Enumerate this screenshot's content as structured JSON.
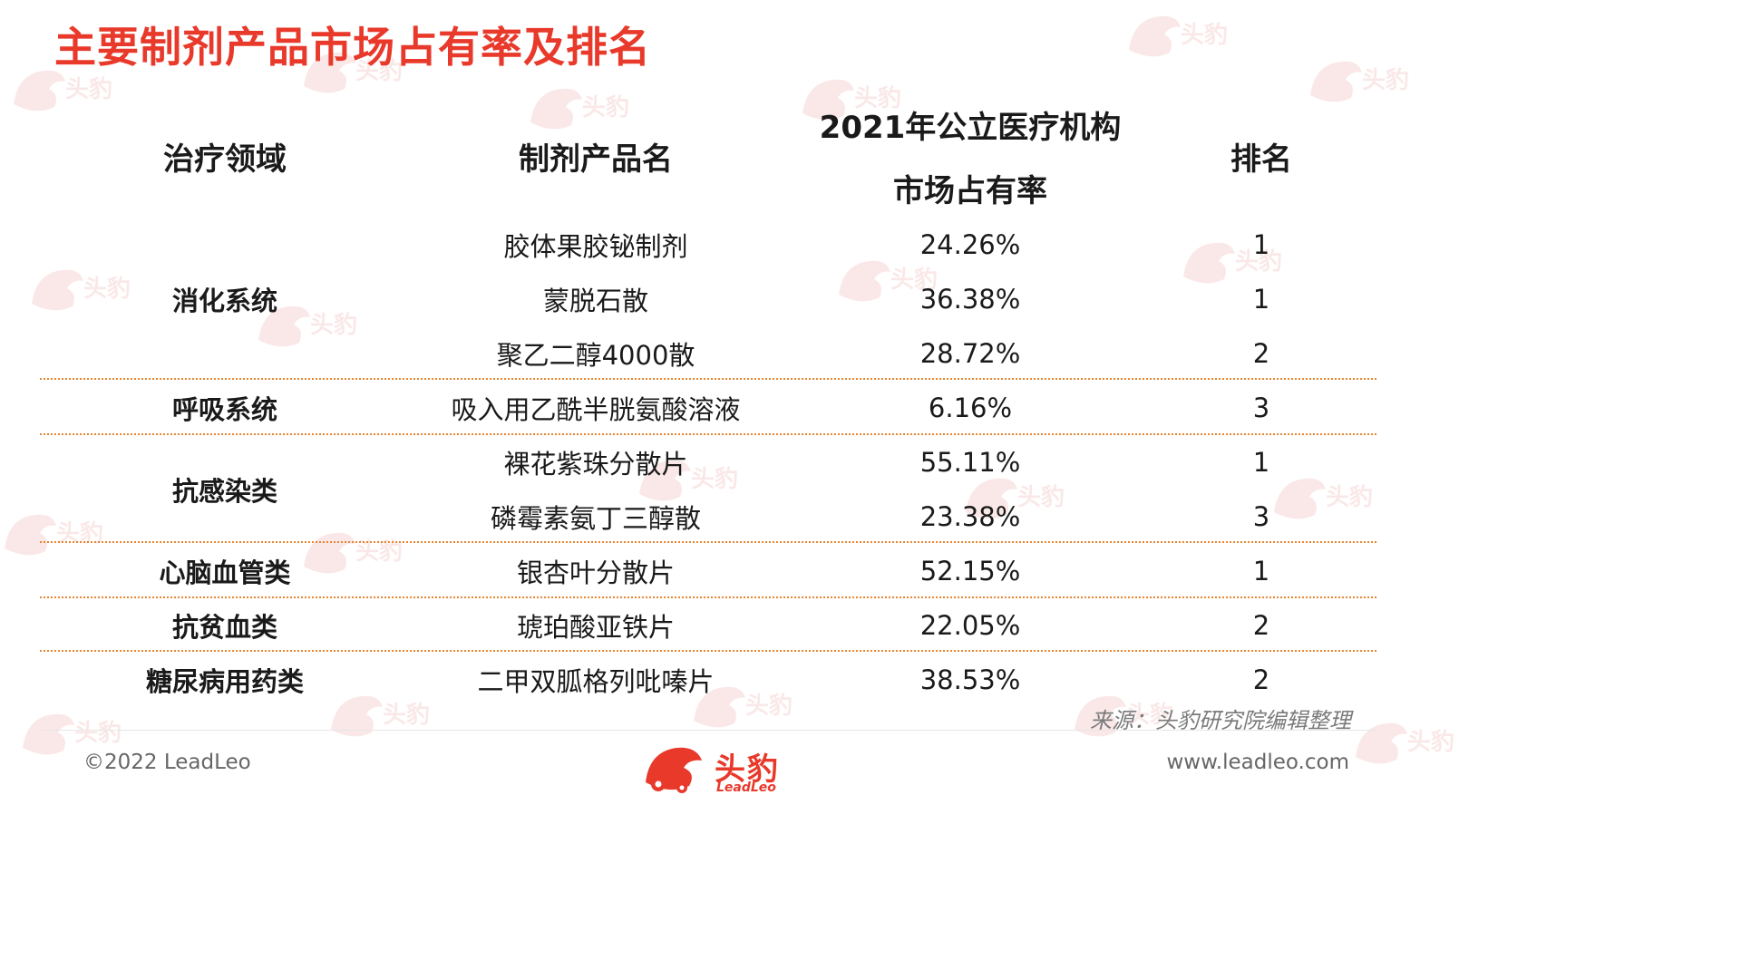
{
  "title": "主要制剂产品市场占有率及排名",
  "headers": {
    "domain": "治疗领域",
    "product": "制剂产品名",
    "share_line1": "2021年公立医疗机构",
    "share_line2": "市场占有率",
    "rank": "排名"
  },
  "groups": [
    {
      "label": "消化系统"
    },
    {
      "label": "呼吸系统"
    },
    {
      "label": "抗感染类"
    },
    {
      "label": "心脑血管类"
    },
    {
      "label": "抗贫血类"
    },
    {
      "label": "糖尿病用药类"
    }
  ],
  "rows": [
    {
      "product": "胶体果胶铋制剂",
      "share": "24.26%",
      "rank": "1"
    },
    {
      "product": "蒙脱石散",
      "share": "36.38%",
      "rank": "1"
    },
    {
      "product": "聚乙二醇4000散",
      "share": "28.72%",
      "rank": "2"
    },
    {
      "product": "吸入用乙酰半胱氨酸溶液",
      "share": "6.16%",
      "rank": "3"
    },
    {
      "product": "裸花紫珠分散片",
      "share": "55.11%",
      "rank": "1"
    },
    {
      "product": "磷霉素氨丁三醇散",
      "share": "23.38%",
      "rank": "3"
    },
    {
      "product": "银杏叶分散片",
      "share": "52.15%",
      "rank": "1"
    },
    {
      "product": "琥珀酸亚铁片",
      "share": "22.05%",
      "rank": "2"
    },
    {
      "product": "二甲双胍格列吡嗪片",
      "share": "38.53%",
      "rank": "2"
    }
  ],
  "source": "来源：头豹研究院编辑整理",
  "footer": {
    "copyright": "©2022 LeadLeo",
    "url": "www.leadleo.com",
    "logo_text": "头豹",
    "logo_sub": "LeadLeo"
  },
  "watermark": {
    "text": "头豹",
    "sub": "LeadLeo",
    "color": "#d82e2a"
  },
  "colors": {
    "title": "#e8392b",
    "divider": "#e8852f",
    "text": "#1a1a1a"
  }
}
